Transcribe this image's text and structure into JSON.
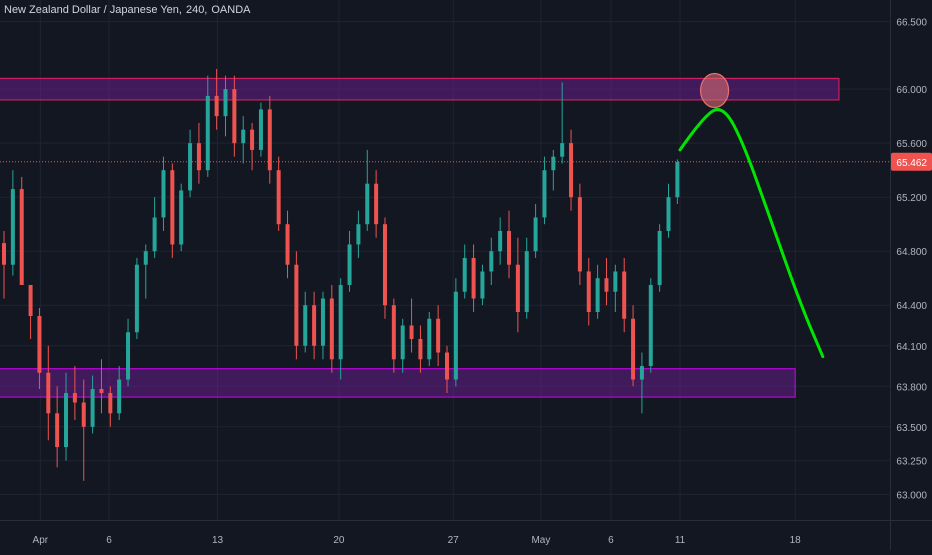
{
  "header": {
    "symbol": "New Zealand Dollar / Japanese Yen,",
    "interval": "240,",
    "source": "OANDA"
  },
  "colors": {
    "background": "#131722",
    "grid": "#1f2433",
    "text": "#b2b5be",
    "up": "#26a69a",
    "down": "#ef5350",
    "resistance_border": "#e91e63",
    "resistance_fill": "#7b1fa2",
    "support_border": "#d500f9",
    "support_fill": "#7b1fa2",
    "projection": "#00e600",
    "target_circle": "#e57373",
    "price_line": "#ef5350"
  },
  "chart_data": {
    "type": "candlestick",
    "xlabel": "",
    "ylabel": "",
    "x_ticks": [
      "Apr",
      "6",
      "13",
      "20",
      "27",
      "May",
      "6",
      "11",
      "18"
    ],
    "y_ticks": [
      66.5,
      66.0,
      65.6,
      65.2,
      64.8,
      64.4,
      64.1,
      63.8,
      63.5,
      63.25,
      63.0
    ],
    "y_tick_labels": [
      "66.500",
      "66.000",
      "65.600",
      "65.200",
      "64.800",
      "64.400",
      "64.100",
      "63.800",
      "63.500",
      "63.250",
      "63.000"
    ],
    "ylim": [
      62.81,
      66.66
    ],
    "last_price": 65.462,
    "last_price_label": "65.462",
    "grid": true,
    "candles": [
      [
        64.86,
        64.95,
        64.45,
        64.7
      ],
      [
        64.7,
        65.4,
        64.62,
        65.26
      ],
      [
        65.26,
        65.35,
        64.55,
        64.55
      ],
      [
        64.55,
        64.55,
        64.15,
        64.32
      ],
      [
        64.32,
        64.38,
        63.78,
        63.9
      ],
      [
        63.9,
        64.1,
        63.4,
        63.6
      ],
      [
        63.6,
        63.8,
        63.2,
        63.35
      ],
      [
        63.35,
        63.9,
        63.25,
        63.75
      ],
      [
        63.75,
        63.95,
        63.55,
        63.68
      ],
      [
        63.68,
        63.85,
        63.1,
        63.5
      ],
      [
        63.5,
        63.88,
        63.45,
        63.78
      ],
      [
        63.78,
        64.0,
        63.6,
        63.75
      ],
      [
        63.75,
        63.8,
        63.5,
        63.6
      ],
      [
        63.6,
        63.95,
        63.55,
        63.85
      ],
      [
        63.85,
        64.3,
        63.8,
        64.2
      ],
      [
        64.2,
        64.75,
        64.15,
        64.7
      ],
      [
        64.7,
        64.85,
        64.45,
        64.8
      ],
      [
        64.8,
        65.2,
        64.75,
        65.05
      ],
      [
        65.05,
        65.5,
        64.95,
        65.4
      ],
      [
        65.4,
        65.45,
        64.75,
        64.85
      ],
      [
        64.85,
        65.3,
        64.8,
        65.25
      ],
      [
        65.25,
        65.7,
        65.2,
        65.6
      ],
      [
        65.6,
        65.75,
        65.3,
        65.4
      ],
      [
        65.4,
        66.1,
        65.35,
        65.95
      ],
      [
        65.95,
        66.15,
        65.7,
        65.8
      ],
      [
        65.8,
        66.1,
        65.65,
        66.0
      ],
      [
        66.0,
        66.1,
        65.5,
        65.6
      ],
      [
        65.6,
        65.8,
        65.45,
        65.7
      ],
      [
        65.7,
        65.75,
        65.4,
        65.55
      ],
      [
        65.55,
        65.9,
        65.5,
        65.85
      ],
      [
        65.85,
        65.95,
        65.3,
        65.4
      ],
      [
        65.4,
        65.5,
        64.95,
        65.0
      ],
      [
        65.0,
        65.1,
        64.6,
        64.7
      ],
      [
        64.7,
        64.8,
        64.0,
        64.1
      ],
      [
        64.1,
        64.5,
        64.05,
        64.4
      ],
      [
        64.4,
        64.5,
        64.0,
        64.1
      ],
      [
        64.1,
        64.5,
        64.0,
        64.45
      ],
      [
        64.45,
        64.55,
        63.9,
        64.0
      ],
      [
        64.0,
        64.6,
        63.85,
        64.55
      ],
      [
        64.55,
        64.95,
        64.5,
        64.85
      ],
      [
        64.85,
        65.1,
        64.75,
        65.0
      ],
      [
        65.0,
        65.55,
        64.95,
        65.3
      ],
      [
        65.3,
        65.4,
        64.9,
        65.0
      ],
      [
        65.0,
        65.05,
        64.3,
        64.4
      ],
      [
        64.4,
        64.45,
        63.9,
        64.0
      ],
      [
        64.0,
        64.3,
        63.9,
        64.25
      ],
      [
        64.25,
        64.45,
        64.05,
        64.15
      ],
      [
        64.15,
        64.25,
        63.9,
        64.0
      ],
      [
        64.0,
        64.35,
        63.95,
        64.3
      ],
      [
        64.3,
        64.4,
        63.95,
        64.05
      ],
      [
        64.05,
        64.1,
        63.75,
        63.85
      ],
      [
        63.85,
        64.6,
        63.8,
        64.5
      ],
      [
        64.5,
        64.85,
        64.45,
        64.75
      ],
      [
        64.75,
        64.85,
        64.35,
        64.45
      ],
      [
        64.45,
        64.7,
        64.4,
        64.65
      ],
      [
        64.65,
        64.9,
        64.55,
        64.8
      ],
      [
        64.8,
        65.05,
        64.7,
        64.95
      ],
      [
        64.95,
        65.1,
        64.6,
        64.7
      ],
      [
        64.7,
        64.9,
        64.2,
        64.35
      ],
      [
        64.35,
        64.9,
        64.3,
        64.8
      ],
      [
        64.8,
        65.15,
        64.75,
        65.05
      ],
      [
        65.05,
        65.5,
        65.0,
        65.4
      ],
      [
        65.4,
        65.55,
        65.25,
        65.5
      ],
      [
        65.5,
        66.05,
        65.45,
        65.6
      ],
      [
        65.6,
        65.7,
        65.1,
        65.2
      ],
      [
        65.2,
        65.3,
        64.55,
        64.65
      ],
      [
        64.65,
        64.75,
        64.25,
        64.35
      ],
      [
        64.35,
        64.7,
        64.3,
        64.6
      ],
      [
        64.6,
        64.75,
        64.4,
        64.5
      ],
      [
        64.5,
        64.7,
        64.35,
        64.65
      ],
      [
        64.65,
        64.75,
        64.2,
        64.3
      ],
      [
        64.3,
        64.4,
        63.8,
        63.85
      ],
      [
        63.85,
        64.05,
        63.6,
        63.95
      ],
      [
        63.95,
        64.6,
        63.9,
        64.55
      ],
      [
        64.55,
        65.0,
        64.5,
        64.95
      ],
      [
        64.95,
        65.3,
        64.9,
        65.2
      ],
      [
        65.2,
        65.48,
        65.15,
        65.46
      ]
    ],
    "annotations": {
      "resistance_zone": {
        "low": 65.92,
        "high": 66.08,
        "end_x": 20.7
      },
      "support_zone": {
        "low": 63.72,
        "high": 63.93,
        "end_x": 17.9
      },
      "projection_path": [
        [
          10.9,
          65.55
        ],
        [
          11.2,
          65.82
        ],
        [
          11.45,
          65.87
        ],
        [
          12.0,
          65.45
        ],
        [
          12.9,
          64.85
        ],
        [
          13.8,
          64.1
        ],
        [
          14.1,
          63.99
        ]
      ],
      "target_circle": {
        "x": 11.45,
        "y": 65.99
      }
    }
  }
}
